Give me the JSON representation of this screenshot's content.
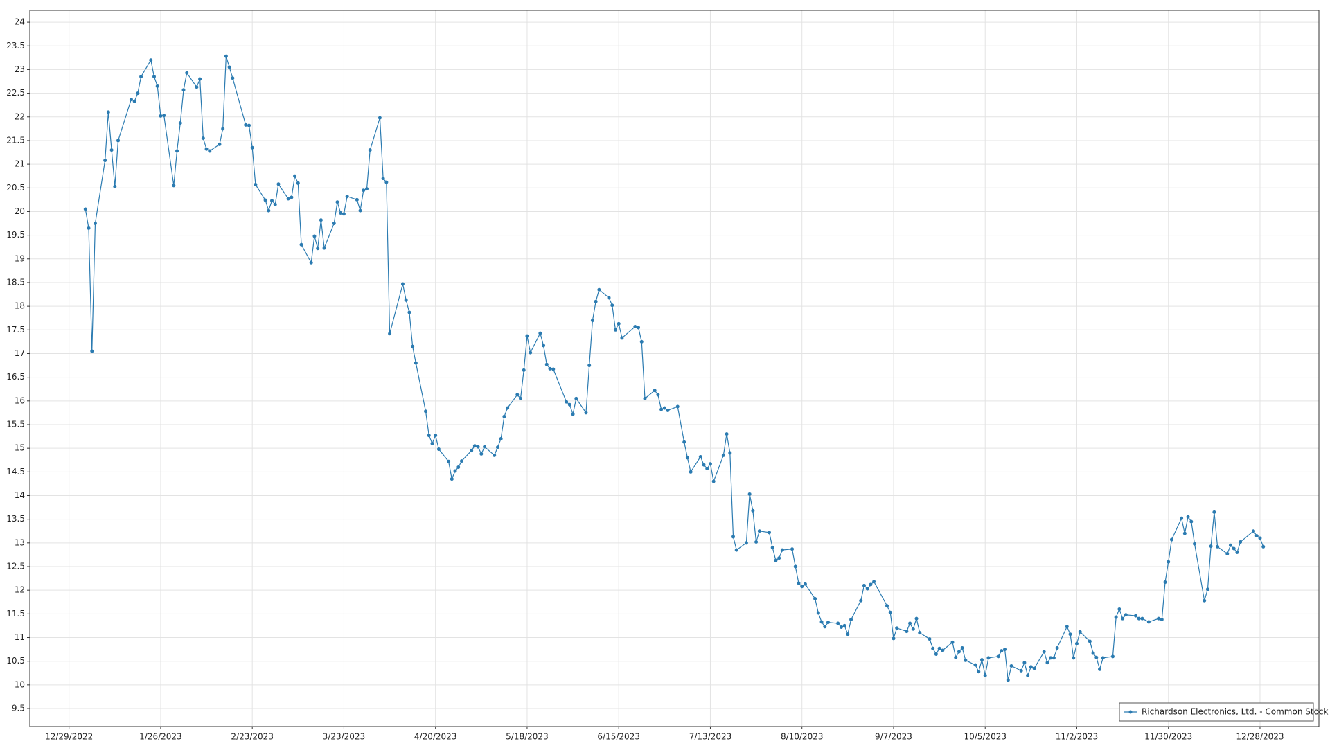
{
  "chart_data": {
    "type": "line",
    "grid": true,
    "legend": "lower right",
    "xlim": [
      "12/17/2022",
      "1/15/2024"
    ],
    "xticks": [
      "12/29/2022",
      "1/26/2023",
      "2/23/2023",
      "3/23/2023",
      "4/20/2023",
      "5/18/2023",
      "6/15/2023",
      "7/13/2023",
      "8/10/2023",
      "9/7/2023",
      "10/5/2023",
      "11/2/2023",
      "11/30/2023",
      "12/28/2023"
    ],
    "ylim": [
      9.12,
      24.25
    ],
    "yticks": [
      9.5,
      10,
      10.5,
      11,
      11.5,
      12,
      12.5,
      13,
      13.5,
      14,
      14.5,
      15,
      15.5,
      16,
      16.5,
      17,
      17.5,
      18,
      18.5,
      19,
      19.5,
      20,
      20.5,
      21,
      21.5,
      22,
      22.5,
      23,
      23.5,
      24
    ],
    "x": [
      "1/3/2023",
      "1/4/2023",
      "1/5/2023",
      "1/6/2023",
      "1/9/2023",
      "1/10/2023",
      "1/11/2023",
      "1/12/2023",
      "1/13/2023",
      "1/17/2023",
      "1/18/2023",
      "1/19/2023",
      "1/20/2023",
      "1/23/2023",
      "1/24/2023",
      "1/25/2023",
      "1/26/2023",
      "1/27/2023",
      "1/30/2023",
      "1/31/2023",
      "2/1/2023",
      "2/2/2023",
      "2/3/2023",
      "2/6/2023",
      "2/7/2023",
      "2/8/2023",
      "2/9/2023",
      "2/10/2023",
      "2/13/2023",
      "2/14/2023",
      "2/15/2023",
      "2/16/2023",
      "2/17/2023",
      "2/21/2023",
      "2/22/2023",
      "2/23/2023",
      "2/24/2023",
      "2/27/2023",
      "2/28/2023",
      "3/1/2023",
      "3/2/2023",
      "3/3/2023",
      "3/6/2023",
      "3/7/2023",
      "3/8/2023",
      "3/9/2023",
      "3/10/2023",
      "3/13/2023",
      "3/14/2023",
      "3/15/2023",
      "3/16/2023",
      "3/17/2023",
      "3/20/2023",
      "3/21/2023",
      "3/22/2023",
      "3/23/2023",
      "3/24/2023",
      "3/27/2023",
      "3/28/2023",
      "3/29/2023",
      "3/30/2023",
      "3/31/2023",
      "4/3/2023",
      "4/4/2023",
      "4/5/2023",
      "4/6/2023",
      "4/10/2023",
      "4/11/2023",
      "4/12/2023",
      "4/13/2023",
      "4/14/2023",
      "4/17/2023",
      "4/18/2023",
      "4/19/2023",
      "4/20/2023",
      "4/21/2023",
      "4/24/2023",
      "4/25/2023",
      "4/26/2023",
      "4/27/2023",
      "4/28/2023",
      "5/1/2023",
      "5/2/2023",
      "5/3/2023",
      "5/4/2023",
      "5/5/2023",
      "5/8/2023",
      "5/9/2023",
      "5/10/2023",
      "5/11/2023",
      "5/12/2023",
      "5/15/2023",
      "5/16/2023",
      "5/17/2023",
      "5/18/2023",
      "5/19/2023",
      "5/22/2023",
      "5/23/2023",
      "5/24/2023",
      "5/25/2023",
      "5/26/2023",
      "5/30/2023",
      "5/31/2023",
      "6/1/2023",
      "6/2/2023",
      "6/5/2023",
      "6/6/2023",
      "6/7/2023",
      "6/8/2023",
      "6/9/2023",
      "6/12/2023",
      "6/13/2023",
      "6/14/2023",
      "6/15/2023",
      "6/16/2023",
      "6/20/2023",
      "6/21/2023",
      "6/22/2023",
      "6/23/2023",
      "6/26/2023",
      "6/27/2023",
      "6/28/2023",
      "6/29/2023",
      "6/30/2023",
      "7/3/2023",
      "7/5/2023",
      "7/6/2023",
      "7/7/2023",
      "7/10/2023",
      "7/11/2023",
      "7/12/2023",
      "7/13/2023",
      "7/14/2023",
      "7/17/2023",
      "7/18/2023",
      "7/19/2023",
      "7/20/2023",
      "7/21/2023",
      "7/24/2023",
      "7/25/2023",
      "7/26/2023",
      "7/27/2023",
      "7/28/2023",
      "7/31/2023",
      "8/1/2023",
      "8/2/2023",
      "8/3/2023",
      "8/4/2023",
      "8/7/2023",
      "8/8/2023",
      "8/9/2023",
      "8/10/2023",
      "8/11/2023",
      "8/14/2023",
      "8/15/2023",
      "8/16/2023",
      "8/17/2023",
      "8/18/2023",
      "8/21/2023",
      "8/22/2023",
      "8/23/2023",
      "8/24/2023",
      "8/25/2023",
      "8/28/2023",
      "8/29/2023",
      "8/30/2023",
      "8/31/2023",
      "9/1/2023",
      "9/5/2023",
      "9/6/2023",
      "9/7/2023",
      "9/8/2023",
      "9/11/2023",
      "9/12/2023",
      "9/13/2023",
      "9/14/2023",
      "9/15/2023",
      "9/18/2023",
      "9/19/2023",
      "9/20/2023",
      "9/21/2023",
      "9/22/2023",
      "9/25/2023",
      "9/26/2023",
      "9/27/2023",
      "9/28/2023",
      "9/29/2023",
      "10/2/2023",
      "10/3/2023",
      "10/4/2023",
      "10/5/2023",
      "10/6/2023",
      "10/9/2023",
      "10/10/2023",
      "10/11/2023",
      "10/12/2023",
      "10/13/2023",
      "10/16/2023",
      "10/17/2023",
      "10/18/2023",
      "10/19/2023",
      "10/20/2023",
      "10/23/2023",
      "10/24/2023",
      "10/25/2023",
      "10/26/2023",
      "10/27/2023",
      "10/30/2023",
      "10/31/2023",
      "11/1/2023",
      "11/2/2023",
      "11/3/2023",
      "11/6/2023",
      "11/7/2023",
      "11/8/2023",
      "11/9/2023",
      "11/10/2023",
      "11/13/2023",
      "11/14/2023",
      "11/15/2023",
      "11/16/2023",
      "11/17/2023",
      "11/20/2023",
      "11/21/2023",
      "11/22/2023",
      "11/24/2023",
      "11/27/2023",
      "11/28/2023",
      "11/29/2023",
      "11/30/2023",
      "12/1/2023",
      "12/4/2023",
      "12/5/2023",
      "12/6/2023",
      "12/7/2023",
      "12/8/2023",
      "12/11/2023",
      "12/12/2023",
      "12/13/2023",
      "12/14/2023",
      "12/15/2023",
      "12/18/2023",
      "12/19/2023",
      "12/20/2023",
      "12/21/2023",
      "12/22/2023",
      "12/26/2023",
      "12/27/2023",
      "12/28/2023",
      "12/29/2023"
    ],
    "series": [
      {
        "name": "Richardson Electronics, Ltd. - Common Stock",
        "color": "#2b7bb1",
        "values": [
          20.05,
          19.65,
          17.05,
          19.75,
          21.08,
          22.1,
          21.3,
          20.53,
          21.5,
          22.37,
          22.33,
          22.5,
          22.85,
          23.2,
          22.85,
          22.65,
          22.02,
          22.03,
          20.55,
          21.28,
          21.87,
          22.57,
          22.93,
          22.63,
          22.8,
          21.55,
          21.32,
          21.28,
          21.42,
          21.75,
          23.28,
          23.05,
          22.82,
          21.83,
          21.82,
          21.35,
          20.57,
          20.24,
          20.02,
          20.23,
          20.15,
          20.58,
          20.27,
          20.3,
          20.75,
          20.6,
          19.3,
          18.92,
          19.48,
          19.22,
          19.82,
          19.23,
          19.75,
          20.2,
          19.97,
          19.95,
          20.32,
          20.25,
          20.02,
          20.45,
          20.48,
          21.3,
          21.98,
          20.7,
          20.62,
          17.42,
          18.47,
          18.13,
          17.87,
          17.15,
          16.8,
          15.78,
          15.27,
          15.1,
          15.27,
          14.98,
          14.72,
          14.35,
          14.52,
          14.6,
          14.73,
          14.95,
          15.05,
          15.03,
          14.88,
          15.03,
          14.85,
          15.02,
          15.2,
          15.67,
          15.85,
          16.13,
          16.05,
          16.65,
          17.37,
          17.02,
          17.43,
          17.17,
          16.77,
          16.68,
          16.67,
          15.98,
          15.92,
          15.72,
          16.05,
          15.75,
          16.75,
          17.7,
          18.1,
          18.35,
          18.18,
          18.02,
          17.5,
          17.63,
          17.33,
          17.57,
          17.55,
          17.25,
          16.05,
          16.22,
          16.13,
          15.82,
          15.85,
          15.8,
          15.88,
          15.13,
          14.8,
          14.5,
          14.82,
          14.65,
          14.57,
          14.67,
          14.3,
          14.85,
          15.3,
          14.9,
          13.13,
          12.85,
          13.0,
          14.03,
          13.68,
          13.02,
          13.25,
          13.22,
          12.9,
          12.63,
          12.68,
          12.85,
          12.87,
          12.5,
          12.15,
          12.08,
          12.13,
          11.82,
          11.52,
          11.33,
          11.23,
          11.32,
          11.3,
          11.22,
          11.25,
          11.07,
          11.38,
          11.78,
          12.1,
          12.03,
          12.12,
          12.18,
          11.67,
          11.53,
          10.98,
          11.2,
          11.13,
          11.3,
          11.18,
          11.4,
          11.1,
          10.97,
          10.77,
          10.65,
          10.77,
          10.73,
          10.9,
          10.58,
          10.7,
          10.78,
          10.52,
          10.42,
          10.28,
          10.53,
          10.2,
          10.57,
          10.6,
          10.72,
          10.75,
          10.1,
          10.4,
          10.3,
          10.47,
          10.2,
          10.38,
          10.35,
          10.7,
          10.47,
          10.57,
          10.57,
          10.78,
          11.23,
          11.07,
          10.57,
          10.87,
          11.12,
          10.92,
          10.67,
          10.58,
          10.33,
          10.57,
          10.6,
          11.43,
          11.6,
          11.4,
          11.48,
          11.46,
          11.4,
          11.4,
          11.33,
          11.4,
          11.38,
          12.17,
          12.6,
          13.07,
          13.52,
          13.2,
          13.55,
          13.45,
          12.98,
          11.78,
          12.02,
          12.93,
          13.65,
          12.92,
          12.77,
          12.95,
          12.88,
          12.8,
          13.02,
          13.25,
          13.15,
          13.1,
          12.92
        ]
      }
    ]
  }
}
